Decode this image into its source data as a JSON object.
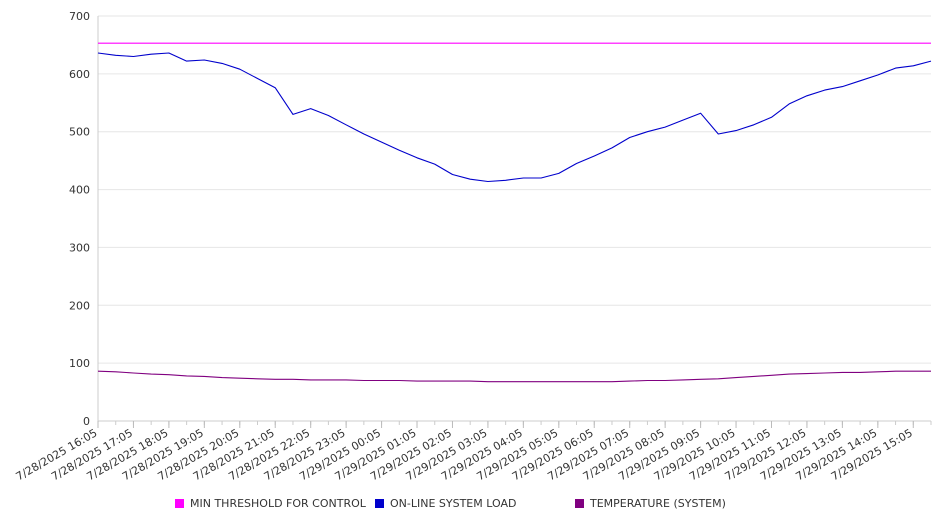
{
  "chart_data": {
    "type": "line",
    "ylim": [
      0,
      700
    ],
    "yticks": [
      0,
      100,
      200,
      300,
      400,
      500,
      600,
      700
    ],
    "grid": true,
    "legend_position": "bottom",
    "x_tick_labels": [
      "7/28/2025 16:05",
      "7/28/2025 17:05",
      "7/28/2025 18:05",
      "7/28/2025 19:05",
      "7/28/2025 20:05",
      "7/28/2025 21:05",
      "7/28/2025 22:05",
      "7/28/2025 23:05",
      "7/29/2025 00:05",
      "7/29/2025 01:05",
      "7/29/2025 02:05",
      "7/29/2025 03:05",
      "7/29/2025 04:05",
      "7/29/2025 05:05",
      "7/29/2025 06:05",
      "7/29/2025 07:05",
      "7/29/2025 08:05",
      "7/29/2025 09:05",
      "7/29/2025 10:05",
      "7/29/2025 11:05",
      "7/29/2025 12:05",
      "7/29/2025 13:05",
      "7/29/2025 14:05",
      "7/29/2025 15:05"
    ],
    "x": [
      "7/28/2025 16:05",
      "7/28/2025 16:35",
      "7/28/2025 17:05",
      "7/28/2025 17:35",
      "7/28/2025 18:05",
      "7/28/2025 18:35",
      "7/28/2025 19:05",
      "7/28/2025 19:35",
      "7/28/2025 20:05",
      "7/28/2025 20:35",
      "7/28/2025 21:05",
      "7/28/2025 21:35",
      "7/28/2025 22:05",
      "7/28/2025 22:35",
      "7/28/2025 23:05",
      "7/28/2025 23:35",
      "7/29/2025 00:05",
      "7/29/2025 00:35",
      "7/29/2025 01:05",
      "7/29/2025 01:35",
      "7/29/2025 02:05",
      "7/29/2025 02:35",
      "7/29/2025 03:05",
      "7/29/2025 03:35",
      "7/29/2025 04:05",
      "7/29/2025 04:35",
      "7/29/2025 05:05",
      "7/29/2025 05:35",
      "7/29/2025 06:05",
      "7/29/2025 06:35",
      "7/29/2025 07:05",
      "7/29/2025 07:35",
      "7/29/2025 08:05",
      "7/29/2025 08:35",
      "7/29/2025 09:05",
      "7/29/2025 09:35",
      "7/29/2025 10:05",
      "7/29/2025 10:35",
      "7/29/2025 11:05",
      "7/29/2025 11:35",
      "7/29/2025 12:05",
      "7/29/2025 12:35",
      "7/29/2025 13:05",
      "7/29/2025 13:35",
      "7/29/2025 14:05",
      "7/29/2025 14:35",
      "7/29/2025 15:05",
      "7/29/2025 15:35"
    ],
    "series": [
      {
        "name": "MIN THRESHOLD FOR CONTROL",
        "color": "#ff00ff",
        "values": [
          653,
          653,
          653,
          653,
          653,
          653,
          653,
          653,
          653,
          653,
          653,
          653,
          653,
          653,
          653,
          653,
          653,
          653,
          653,
          653,
          653,
          653,
          653,
          653,
          653,
          653,
          653,
          653,
          653,
          653,
          653,
          653,
          653,
          653,
          653,
          653,
          653,
          653,
          653,
          653,
          653,
          653,
          653,
          653,
          653,
          653,
          653,
          653
        ]
      },
      {
        "name": "ON-LINE SYSTEM LOAD",
        "color": "#0000cc",
        "values": [
          636,
          632,
          630,
          634,
          636,
          622,
          624,
          618,
          608,
          592,
          576,
          530,
          540,
          528,
          512,
          496,
          482,
          468,
          455,
          444,
          426,
          418,
          414,
          416,
          420,
          420,
          428,
          445,
          458,
          472,
          490,
          500,
          508,
          520,
          532,
          496,
          502,
          512,
          525,
          548,
          562,
          572,
          578,
          588,
          598,
          610,
          614,
          622
        ]
      },
      {
        "name": "TEMPERATURE (SYSTEM)",
        "color": "#800080",
        "values": [
          86,
          85,
          83,
          81,
          80,
          78,
          77,
          75,
          74,
          73,
          72,
          72,
          71,
          71,
          71,
          70,
          70,
          70,
          69,
          69,
          69,
          69,
          68,
          68,
          68,
          68,
          68,
          68,
          68,
          68,
          69,
          70,
          70,
          71,
          72,
          73,
          75,
          77,
          79,
          81,
          82,
          83,
          84,
          84,
          85,
          86,
          86,
          86
        ]
      }
    ]
  }
}
